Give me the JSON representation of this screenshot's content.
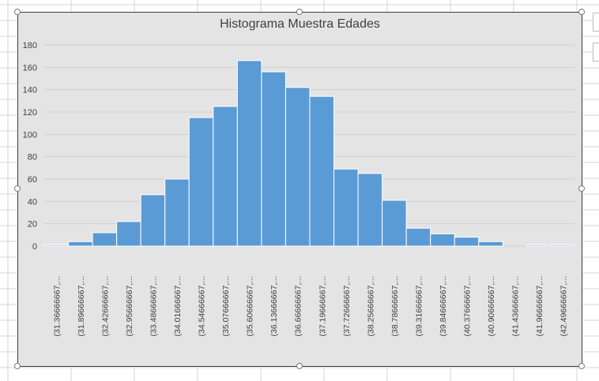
{
  "chart_data": {
    "type": "bar",
    "title": "Histograma Muestra Edades",
    "xlabel": "",
    "ylabel": "",
    "ylim": [
      0,
      180
    ],
    "yticks": [
      0,
      20,
      40,
      60,
      80,
      100,
      120,
      140,
      160,
      180
    ],
    "grid": true,
    "categories": [
      "(31.36666667,...",
      "(31.89666667,...",
      "(32.42666667,...",
      "(32.95666667,...",
      "(33.48666667,...",
      "(34.01666667,...",
      "(34.54666667,...",
      "(35.07666667,...",
      "(35.60666667,...",
      "(36.13666667,...",
      "(36.66666667,...",
      "(37.19666667,...",
      "(37.72666667,...",
      "(38.25666667,...",
      "(38.78666667,...",
      "(39.31666667,...",
      "(39.84666667,...",
      "(40.37666667,...",
      "(40.90666667,...",
      "(41.43666667,...",
      "(41.96666667,...",
      "(42.49666667,..."
    ],
    "values": [
      1,
      4,
      12,
      22,
      46,
      60,
      115,
      125,
      166,
      156,
      142,
      134,
      69,
      65,
      41,
      16,
      11,
      8,
      4,
      0,
      1,
      1
    ],
    "colors": {
      "bar": "#5b9bd5",
      "plot_bg": "#e4e4e4",
      "grid": "#d0d0d0",
      "text": "#404040"
    }
  }
}
